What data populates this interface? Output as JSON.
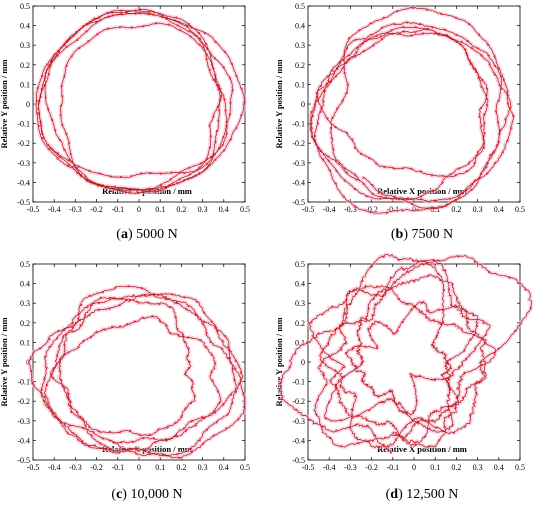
{
  "chart_data": [
    {
      "type": "line",
      "panel_letter": "a",
      "caption_value": "5000 N",
      "xlabel": "Relative X position / mm",
      "ylabel": "Relative Y position / mm",
      "xlim": [
        -0.5,
        0.5
      ],
      "ylim": [
        -0.5,
        0.5
      ],
      "xticks": [
        "-0.5",
        "-0.4",
        "-0.3",
        "-0.2",
        "-0.1",
        "0",
        "0.1",
        "0.2",
        "0.3",
        "0.4",
        "0.5"
      ],
      "yticks": [
        "-0.5",
        "-0.4",
        "-0.3",
        "-0.2",
        "-0.1",
        "0",
        "0.1",
        "0.2",
        "0.3",
        "0.4",
        "0.5"
      ],
      "grid": false,
      "series": [
        {
          "style": "orbit",
          "center": [
            -0.01,
            -0.02
          ],
          "rx": 0.425,
          "ry": 0.43,
          "noise": 0.012,
          "turns": 5
        }
      ]
    },
    {
      "type": "line",
      "panel_letter": "b",
      "caption_value": "7500 N",
      "xlabel": "Relative X position / mm",
      "ylabel": "Relative Y position / mm",
      "xlim": [
        -0.5,
        0.5
      ],
      "ylim": [
        -0.5,
        0.5
      ],
      "xticks": [
        "-0.5",
        "-0.4",
        "-0.3",
        "-0.2",
        "-0.1",
        "0",
        "0.1",
        "0.2",
        "0.3",
        "0.4",
        "0.5"
      ],
      "yticks": [
        "-0.5",
        "-0.4",
        "-0.3",
        "-0.2",
        "-0.1",
        "0",
        "0.1",
        "0.2",
        "0.3",
        "0.4",
        "0.5"
      ],
      "grid": false,
      "series": [
        {
          "style": "orbit",
          "center": [
            -0.02,
            -0.03
          ],
          "rx": 0.415,
          "ry": 0.405,
          "noise": 0.02,
          "turns": 5
        }
      ]
    },
    {
      "type": "line",
      "panel_letter": "c",
      "caption_value": "10,000 N",
      "xlabel": "Relative X position / mm",
      "ylabel": "Relative Y position / mm",
      "xlim": [
        -0.5,
        0.5
      ],
      "ylim": [
        -0.5,
        0.5
      ],
      "xticks": [
        "-0.5",
        "-0.4",
        "-0.3",
        "-0.2",
        "-0.1",
        "0",
        "0.1",
        "0.2",
        "0.3",
        "0.4",
        "0.5"
      ],
      "yticks": [
        "-0.5",
        "-0.4",
        "-0.3",
        "-0.2",
        "-0.1",
        "0",
        "0.1",
        "0.2",
        "0.3",
        "0.4",
        "0.5"
      ],
      "grid": false,
      "series": [
        {
          "style": "orbit",
          "center": [
            -0.01,
            -0.05
          ],
          "rx": 0.4,
          "ry": 0.37,
          "noise": 0.03,
          "turns": 5
        }
      ]
    },
    {
      "type": "line",
      "panel_letter": "d",
      "caption_value": "12,500 N",
      "xlabel": "Relative X position / mm",
      "ylabel": "Relative Y position / mm",
      "xlim": [
        -0.5,
        0.5
      ],
      "ylim": [
        -0.5,
        0.5
      ],
      "xticks": [
        "-0.5",
        "-0.4",
        "-0.3",
        "-0.2",
        "-0.1",
        "0",
        "0.1",
        "0.2",
        "0.3",
        "0.4",
        "0.5"
      ],
      "yticks": [
        "-0.5",
        "-0.4",
        "-0.3",
        "-0.2",
        "-0.1",
        "0",
        "0.1",
        "0.2",
        "0.3",
        "0.4",
        "0.5"
      ],
      "grid": false,
      "series": [
        {
          "style": "orbit",
          "center": [
            -0.07,
            0.0
          ],
          "rx": 0.35,
          "ry": 0.36,
          "noise": 0.06,
          "turns": 6
        }
      ]
    }
  ],
  "colors": {
    "trace": "#a0201e",
    "trace_dark": "#7a3a2a",
    "marker": "#ff0000",
    "glow": "#f7b3cf",
    "axis": "#000000"
  }
}
